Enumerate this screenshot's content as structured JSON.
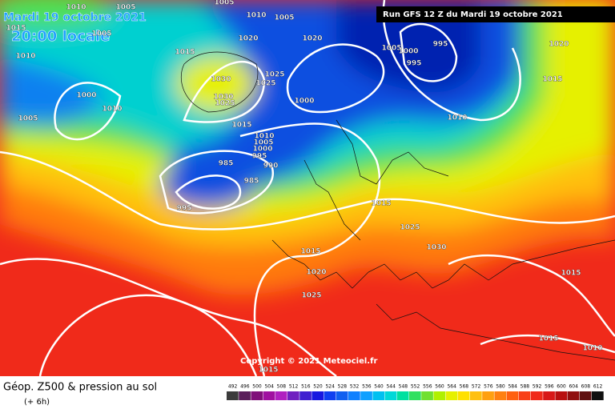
{
  "header": {
    "date": "Mardi 19 octobre 2021",
    "time": "20:00 locale",
    "run": "Run GFS 12 Z du Mardi 19 octobre 2021"
  },
  "isobar_labels": [
    "1010",
    "1005",
    "1005",
    "1010",
    "1005",
    "1015",
    "1010",
    "1005",
    "1015",
    "1020",
    "1020",
    "1005",
    "1000",
    "995",
    "995",
    "1020",
    "1015",
    "1000",
    "1005",
    "1010",
    "1030",
    "1030",
    "1025",
    "1025",
    "1025",
    "1000",
    "1010",
    "1015",
    "1010",
    "1005",
    "1000",
    "995",
    "990",
    "985",
    "985",
    "995",
    "1015",
    "1025",
    "1030",
    "1015",
    "1020",
    "1025",
    "1015",
    "1015",
    "1010",
    "1015"
  ],
  "copyright": "Copyright © 2021 Meteociel.fr",
  "legend": {
    "title": "Géop. Z500 & pression au sol",
    "subtitle": "(+ 6h)",
    "scale": [
      492,
      496,
      500,
      504,
      508,
      512,
      516,
      520,
      524,
      528,
      532,
      536,
      540,
      544,
      548,
      552,
      556,
      560,
      564,
      568,
      572,
      576,
      580,
      584,
      588,
      592,
      596,
      600,
      604,
      608,
      612
    ]
  }
}
